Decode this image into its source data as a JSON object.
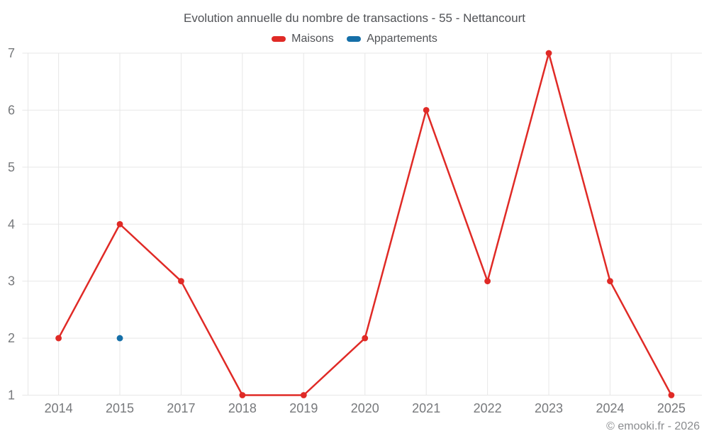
{
  "title": "Evolution annuelle du nombre de transactions - 55 - Nettancourt",
  "legend": {
    "items": [
      {
        "label": "Maisons",
        "color": "#e02a26"
      },
      {
        "label": "Appartements",
        "color": "#156fa8"
      }
    ]
  },
  "copyright": "© emooki.fr - 2026",
  "colors": {
    "maisons_red": "#e02a26",
    "appartements_blue": "#156fa8",
    "grid": "#e7e7e7",
    "axis_label": "#77797c",
    "heading_text": "#505256",
    "copyright_text": "#8a8c8f",
    "background": "#ffffff"
  },
  "chart_data": {
    "type": "line",
    "title": "Evolution annuelle du nombre de transactions - 55 - Nettancourt",
    "categories": [
      "2014",
      "2015",
      "2017",
      "2018",
      "2019",
      "2020",
      "2021",
      "2022",
      "2023",
      "2024",
      "2025"
    ],
    "series": [
      {
        "name": "Maisons",
        "color": "#e02a26",
        "values": [
          2,
          4,
          3,
          1,
          1,
          2,
          6,
          3,
          7,
          3,
          1
        ]
      },
      {
        "name": "Appartements",
        "color": "#156fa8",
        "values": [
          null,
          2,
          null,
          null,
          null,
          null,
          null,
          null,
          null,
          null,
          null
        ]
      }
    ],
    "xlabel": "",
    "ylabel": "",
    "ylim": [
      1,
      7
    ],
    "yticks": [
      1,
      2,
      3,
      4,
      5,
      6,
      7
    ],
    "grid": true,
    "legend_position": "top"
  }
}
